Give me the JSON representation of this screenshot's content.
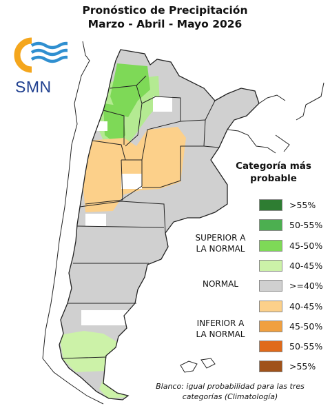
{
  "title": {
    "line1": "Pronóstico de Precipitación",
    "line2": "Marzo - Abril - Mayo 2026"
  },
  "logo": {
    "text": "SMN",
    "colors": {
      "sun": "#f4a61d",
      "waves": "#2f8fd0",
      "text": "#1f3f8f"
    }
  },
  "legend": {
    "title_line1": "Categoría más",
    "title_line2": "probable",
    "categories": [
      {
        "line1": "SUPERIOR A",
        "line2": "LA NORMAL"
      },
      {
        "line1": "NORMAL",
        "line2": ""
      },
      {
        "line1": "INFERIOR A",
        "line2": "LA NORMAL"
      }
    ],
    "items": [
      {
        "label": ">55%",
        "color": "#2e7d32"
      },
      {
        "label": "50-55%",
        "color": "#4caf50"
      },
      {
        "label": "45-50%",
        "color": "#7ed957"
      },
      {
        "label": "40-45%",
        "color": "#ccf2a8"
      },
      {
        "label": ">=40%",
        "color": "#d0d0d0"
      },
      {
        "label": "40-45%",
        "color": "#fcd08a"
      },
      {
        "label": "45-50%",
        "color": "#f0a040"
      },
      {
        "label": "50-55%",
        "color": "#e06a1a"
      },
      {
        "label": ">55%",
        "color": "#a0521a"
      }
    ]
  },
  "map_colors": {
    "normal": "#d0d0d0",
    "blank": "#ffffff",
    "green_light": "#b4ea92",
    "green_mid": "#7ed957",
    "orange_light": "#fcd08a",
    "border": "#222222"
  },
  "footnote": {
    "line1": "Blanco: igual probabilidad para las tres",
    "line2": "categorías (Climatología)"
  }
}
